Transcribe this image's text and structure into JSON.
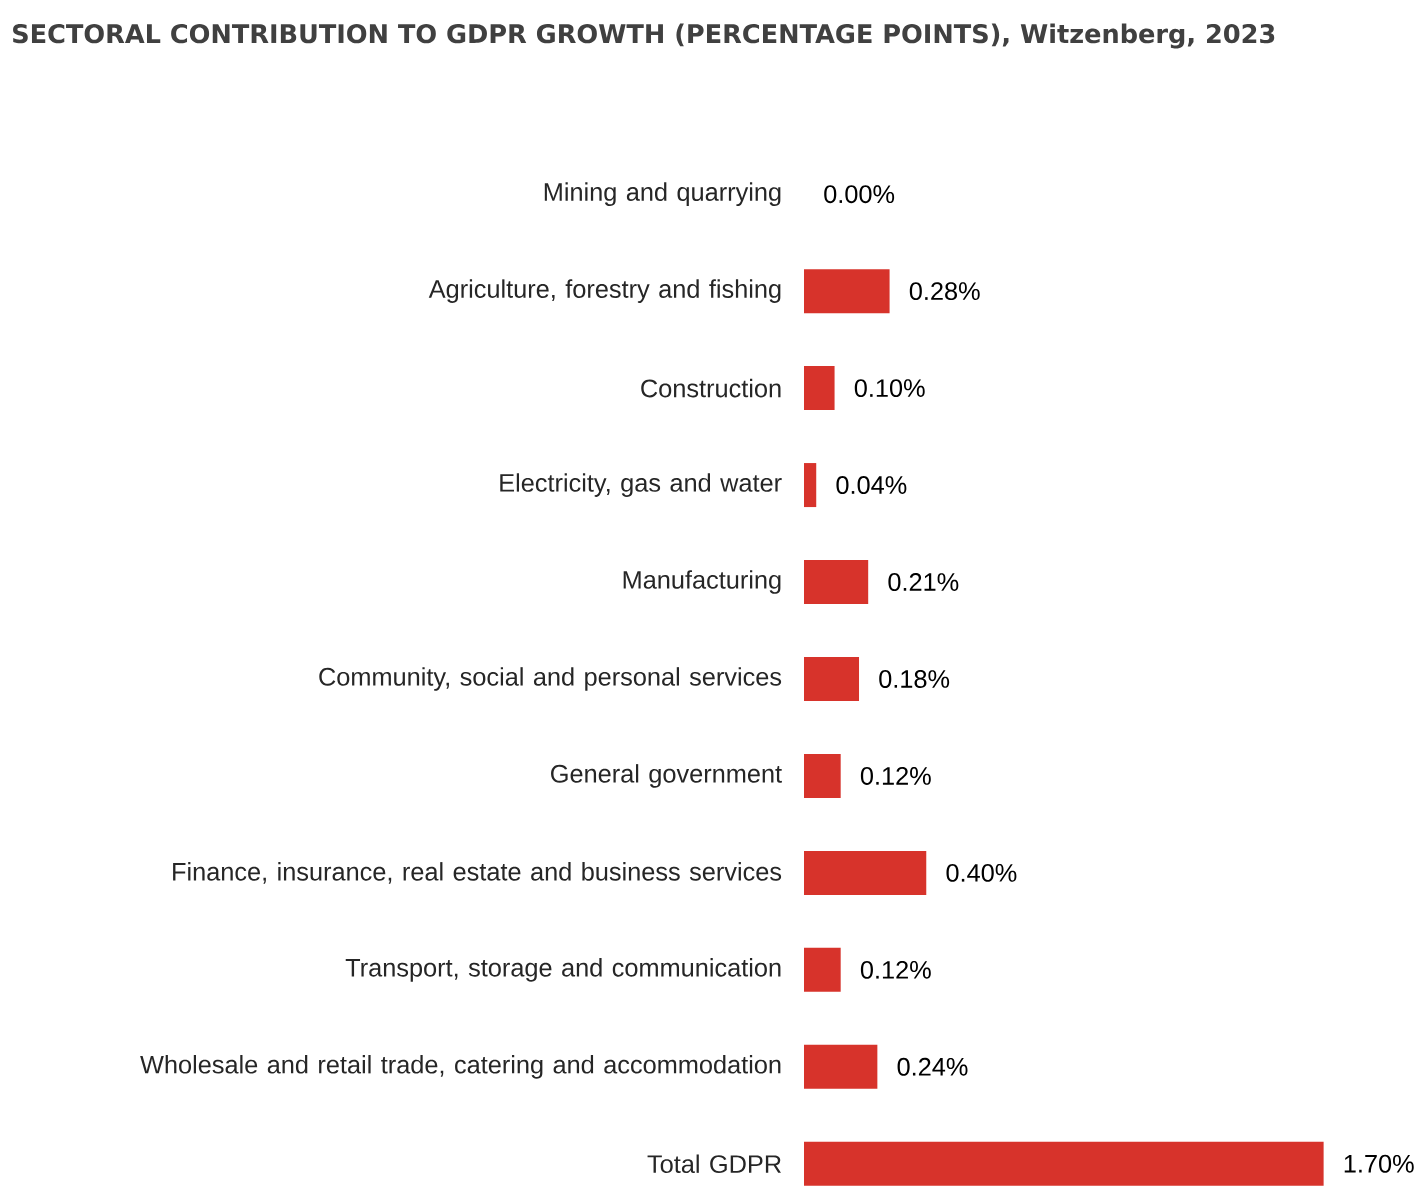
{
  "chart_data": {
    "type": "bar",
    "orientation": "horizontal",
    "title": "SECTORAL CONTRIBUTION TO GDPR GROWTH (PERCENTAGE POINTS), Witzenberg, 2023",
    "categories": [
      "Mining and quarrying",
      "Agriculture, forestry and fishing",
      "Construction",
      "Electricity, gas and water",
      "Manufacturing",
      "Community, social and personal services",
      "General government",
      "Finance, insurance, real estate and business services",
      "Transport, storage and communication",
      "Wholesale and retail trade, catering and accommodation",
      "Total GDPR"
    ],
    "values": [
      0.0,
      0.28,
      0.1,
      0.04,
      0.21,
      0.18,
      0.12,
      0.4,
      0.12,
      0.24,
      1.7
    ],
    "value_labels": [
      "0.00%",
      "0.28%",
      "0.10%",
      "0.04%",
      "0.21%",
      "0.18%",
      "0.12%",
      "0.40%",
      "0.12%",
      "0.24%",
      "1.70%"
    ],
    "color": "#d7332b"
  }
}
